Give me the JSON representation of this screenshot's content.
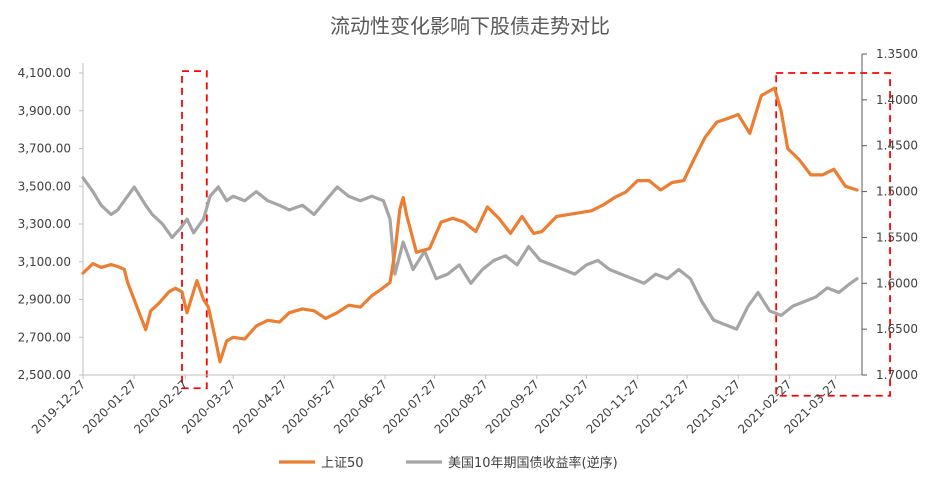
{
  "chart_data": {
    "type": "line",
    "title": "流动性变化影响下股债走势对比",
    "x_ticks": [
      "2019-12-27",
      "2020-01-27",
      "2020-02-27",
      "2020-03-27",
      "2020-04-27",
      "2020-05-27",
      "2020-06-27",
      "2020-07-27",
      "2020-08-27",
      "2020-09-27",
      "2020-10-27",
      "2020-11-27",
      "2020-12-27",
      "2021-01-27",
      "2021-02-27",
      "2021-03-27"
    ],
    "y_left": {
      "range": [
        2500,
        4100
      ],
      "ticks": [
        "2,500.00",
        "2,700.00",
        "2,900.00",
        "3,100.00",
        "3,300.00",
        "3,500.00",
        "3,700.00",
        "3,900.00",
        "4,100.00"
      ]
    },
    "y_right": {
      "range": [
        1.35,
        1.7
      ],
      "inverted": true,
      "ticks": [
        "1.3500",
        "1.4000",
        "1.4500",
        "1.5000",
        "1.5500",
        "1.6000",
        "1.6500",
        "1.7000"
      ]
    },
    "grid": false,
    "legend_position": "bottom",
    "series": [
      {
        "name": "上证50",
        "axis": "left",
        "color": "#ED7D31",
        "points": [
          [
            "2019-12-27",
            3040
          ],
          [
            "2020-01-02",
            3090
          ],
          [
            "2020-01-07",
            3070
          ],
          [
            "2020-01-13",
            3085
          ],
          [
            "2020-01-17",
            3075
          ],
          [
            "2020-01-21",
            3060
          ],
          [
            "2020-01-23",
            2990
          ],
          [
            "2020-02-03",
            2740
          ],
          [
            "2020-02-06",
            2840
          ],
          [
            "2020-02-11",
            2880
          ],
          [
            "2020-02-17",
            2940
          ],
          [
            "2020-02-21",
            2960
          ],
          [
            "2020-02-25",
            2940
          ],
          [
            "2020-02-28",
            2830
          ],
          [
            "2020-03-05",
            3000
          ],
          [
            "2020-03-09",
            2900
          ],
          [
            "2020-03-12",
            2860
          ],
          [
            "2020-03-16",
            2700
          ],
          [
            "2020-03-19",
            2570
          ],
          [
            "2020-03-23",
            2680
          ],
          [
            "2020-03-27",
            2700
          ],
          [
            "2020-04-03",
            2690
          ],
          [
            "2020-04-10",
            2760
          ],
          [
            "2020-04-17",
            2790
          ],
          [
            "2020-04-24",
            2780
          ],
          [
            "2020-04-30",
            2830
          ],
          [
            "2020-05-08",
            2850
          ],
          [
            "2020-05-15",
            2840
          ],
          [
            "2020-05-22",
            2800
          ],
          [
            "2020-05-29",
            2830
          ],
          [
            "2020-06-05",
            2870
          ],
          [
            "2020-06-12",
            2860
          ],
          [
            "2020-06-19",
            2920
          ],
          [
            "2020-06-24",
            2950
          ],
          [
            "2020-06-30",
            2990
          ],
          [
            "2020-07-03",
            3150
          ],
          [
            "2020-07-06",
            3380
          ],
          [
            "2020-07-08",
            3440
          ],
          [
            "2020-07-10",
            3350
          ],
          [
            "2020-07-16",
            3150
          ],
          [
            "2020-07-24",
            3170
          ],
          [
            "2020-07-31",
            3310
          ],
          [
            "2020-08-07",
            3330
          ],
          [
            "2020-08-14",
            3310
          ],
          [
            "2020-08-21",
            3260
          ],
          [
            "2020-08-28",
            3390
          ],
          [
            "2020-09-04",
            3330
          ],
          [
            "2020-09-11",
            3250
          ],
          [
            "2020-09-18",
            3340
          ],
          [
            "2020-09-25",
            3250
          ],
          [
            "2020-09-30",
            3260
          ],
          [
            "2020-10-09",
            3340
          ],
          [
            "2020-10-16",
            3350
          ],
          [
            "2020-10-23",
            3360
          ],
          [
            "2020-10-30",
            3370
          ],
          [
            "2020-11-06",
            3400
          ],
          [
            "2020-11-13",
            3440
          ],
          [
            "2020-11-20",
            3470
          ],
          [
            "2020-11-27",
            3530
          ],
          [
            "2020-12-04",
            3530
          ],
          [
            "2020-12-11",
            3480
          ],
          [
            "2020-12-18",
            3520
          ],
          [
            "2020-12-25",
            3530
          ],
          [
            "2020-12-31",
            3640
          ],
          [
            "2021-01-07",
            3760
          ],
          [
            "2021-01-14",
            3840
          ],
          [
            "2021-01-21",
            3860
          ],
          [
            "2021-01-27",
            3880
          ],
          [
            "2021-02-03",
            3780
          ],
          [
            "2021-02-10",
            3980
          ],
          [
            "2021-02-18",
            4020
          ],
          [
            "2021-02-22",
            3900
          ],
          [
            "2021-02-26",
            3700
          ],
          [
            "2021-03-05",
            3640
          ],
          [
            "2021-03-12",
            3560
          ],
          [
            "2021-03-19",
            3560
          ],
          [
            "2021-03-26",
            3590
          ],
          [
            "2021-04-02",
            3500
          ],
          [
            "2021-04-09",
            3480
          ]
        ]
      },
      {
        "name": "美国10年期国债收益率(逆序)",
        "axis": "right",
        "color": "#A5A5A5",
        "points": [
          [
            "2019-12-27",
            1.485
          ],
          [
            "2020-01-02",
            1.5
          ],
          [
            "2020-01-07",
            1.515
          ],
          [
            "2020-01-13",
            1.525
          ],
          [
            "2020-01-17",
            1.52
          ],
          [
            "2020-01-21",
            1.51
          ],
          [
            "2020-01-27",
            1.495
          ],
          [
            "2020-02-03",
            1.515
          ],
          [
            "2020-02-07",
            1.525
          ],
          [
            "2020-02-13",
            1.535
          ],
          [
            "2020-02-19",
            1.55
          ],
          [
            "2020-02-24",
            1.54
          ],
          [
            "2020-02-28",
            1.53
          ],
          [
            "2020-03-03",
            1.545
          ],
          [
            "2020-03-09",
            1.53
          ],
          [
            "2020-03-13",
            1.505
          ],
          [
            "2020-03-18",
            1.495
          ],
          [
            "2020-03-23",
            1.51
          ],
          [
            "2020-03-27",
            1.505
          ],
          [
            "2020-04-03",
            1.51
          ],
          [
            "2020-04-10",
            1.5
          ],
          [
            "2020-04-17",
            1.51
          ],
          [
            "2020-04-24",
            1.515
          ],
          [
            "2020-04-30",
            1.52
          ],
          [
            "2020-05-08",
            1.515
          ],
          [
            "2020-05-15",
            1.525
          ],
          [
            "2020-05-22",
            1.51
          ],
          [
            "2020-05-29",
            1.495
          ],
          [
            "2020-06-05",
            1.505
          ],
          [
            "2020-06-12",
            1.51
          ],
          [
            "2020-06-19",
            1.505
          ],
          [
            "2020-06-26",
            1.51
          ],
          [
            "2020-06-30",
            1.53
          ],
          [
            "2020-07-03",
            1.59
          ],
          [
            "2020-07-08",
            1.555
          ],
          [
            "2020-07-14",
            1.585
          ],
          [
            "2020-07-21",
            1.565
          ],
          [
            "2020-07-28",
            1.595
          ],
          [
            "2020-08-04",
            1.59
          ],
          [
            "2020-08-11",
            1.58
          ],
          [
            "2020-08-18",
            1.6
          ],
          [
            "2020-08-25",
            1.585
          ],
          [
            "2020-09-01",
            1.575
          ],
          [
            "2020-09-08",
            1.57
          ],
          [
            "2020-09-15",
            1.58
          ],
          [
            "2020-09-22",
            1.56
          ],
          [
            "2020-09-29",
            1.575
          ],
          [
            "2020-10-06",
            1.58
          ],
          [
            "2020-10-13",
            1.585
          ],
          [
            "2020-10-20",
            1.59
          ],
          [
            "2020-10-27",
            1.58
          ],
          [
            "2020-11-03",
            1.575
          ],
          [
            "2020-11-10",
            1.585
          ],
          [
            "2020-11-17",
            1.59
          ],
          [
            "2020-11-24",
            1.595
          ],
          [
            "2020-12-01",
            1.6
          ],
          [
            "2020-12-08",
            1.59
          ],
          [
            "2020-12-15",
            1.595
          ],
          [
            "2020-12-22",
            1.585
          ],
          [
            "2020-12-29",
            1.595
          ],
          [
            "2021-01-05",
            1.62
          ],
          [
            "2021-01-12",
            1.64
          ],
          [
            "2021-01-19",
            1.645
          ],
          [
            "2021-01-26",
            1.65
          ],
          [
            "2021-02-02",
            1.625
          ],
          [
            "2021-02-08",
            1.61
          ],
          [
            "2021-02-15",
            1.63
          ],
          [
            "2021-02-22",
            1.635
          ],
          [
            "2021-03-01",
            1.625
          ],
          [
            "2021-03-08",
            1.62
          ],
          [
            "2021-03-15",
            1.615
          ],
          [
            "2021-03-22",
            1.605
          ],
          [
            "2021-03-29",
            1.61
          ],
          [
            "2021-04-05",
            1.6
          ],
          [
            "2021-04-09",
            1.595
          ]
        ]
      }
    ],
    "annotations": [
      {
        "type": "dashed-box",
        "color": "#FF0000",
        "x_range": [
          "2020-02-25",
          "2020-03-11"
        ],
        "y_range_left": [
          2430,
          4110
        ]
      },
      {
        "type": "dashed-box",
        "color": "#FF0000",
        "x_range": [
          "2021-02-19",
          "2021-04-29"
        ],
        "y_range_left": [
          2390,
          4100
        ]
      }
    ]
  }
}
